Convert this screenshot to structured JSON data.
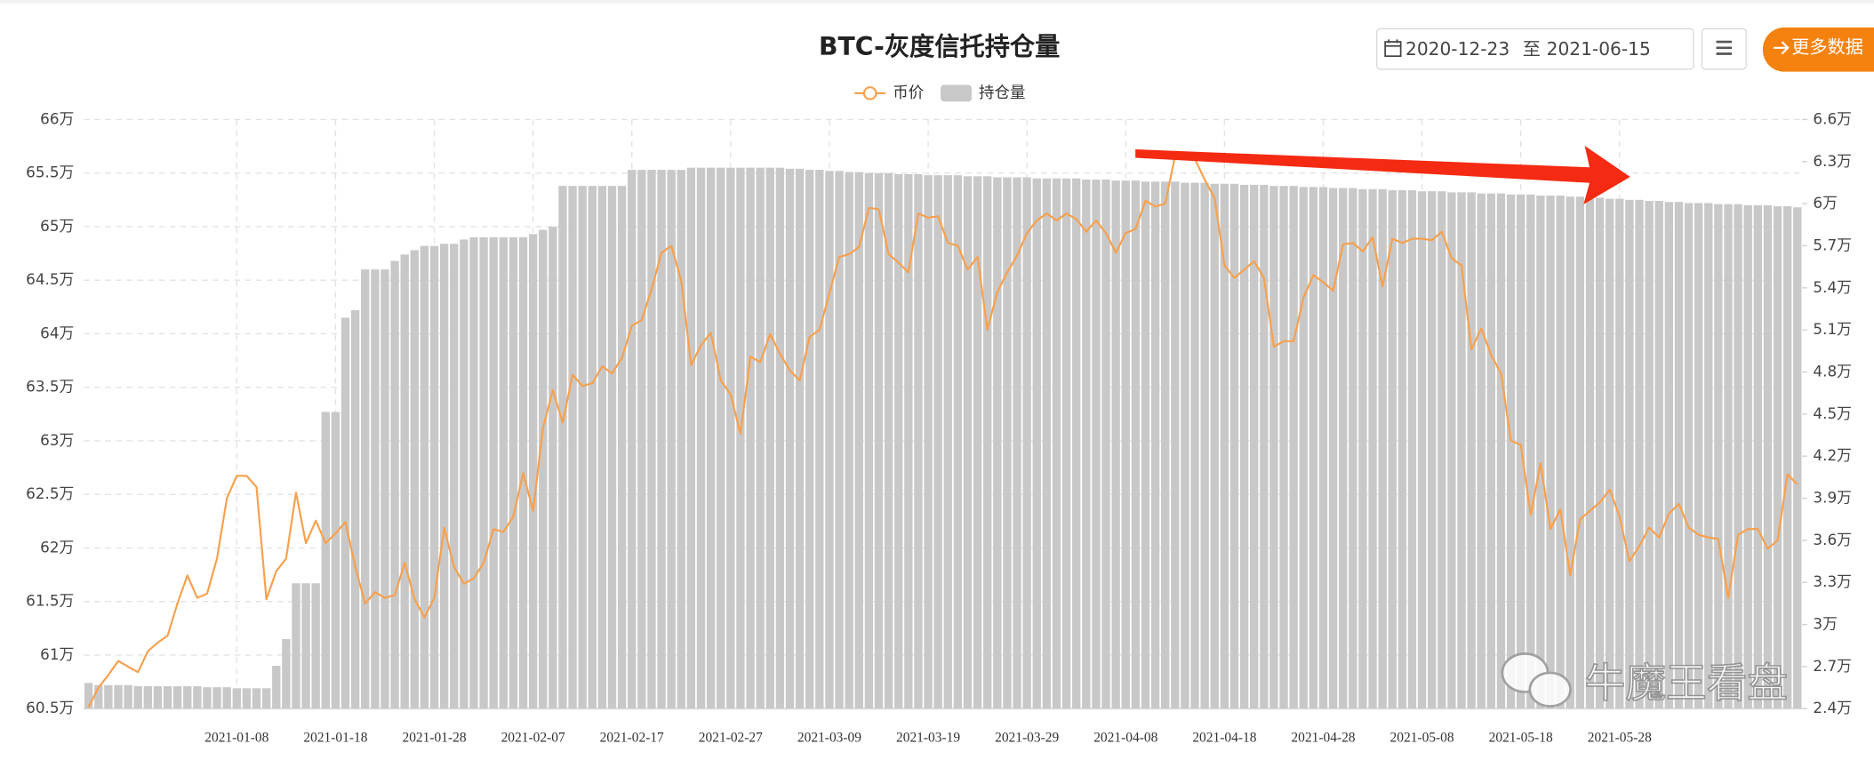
{
  "controls": {
    "date_start": "2020-12-23",
    "date_sep": "至",
    "date_end": "2021-06-15",
    "more_button": "更多数据"
  },
  "watermark": "牛魔王看盘",
  "chart_data": {
    "type": "combo",
    "title": "BTC-灰度信托持仓量",
    "legend": "top",
    "grid": true,
    "categories": [
      null,
      null,
      null,
      null,
      null,
      null,
      null,
      null,
      null,
      null,
      null,
      null,
      null,
      null,
      null,
      "2021-01-08",
      null,
      null,
      null,
      null,
      null,
      null,
      null,
      null,
      null,
      "2021-01-18",
      null,
      null,
      null,
      null,
      null,
      null,
      null,
      null,
      null,
      "2021-01-28",
      null,
      null,
      null,
      null,
      null,
      null,
      null,
      null,
      null,
      "2021-02-07",
      null,
      null,
      null,
      null,
      null,
      null,
      null,
      null,
      null,
      "2021-02-17",
      null,
      null,
      null,
      null,
      null,
      null,
      null,
      null,
      null,
      "2021-02-27",
      null,
      null,
      null,
      null,
      null,
      null,
      null,
      null,
      null,
      "2021-03-09",
      null,
      null,
      null,
      null,
      null,
      null,
      null,
      null,
      null,
      "2021-03-19",
      null,
      null,
      null,
      null,
      null,
      null,
      null,
      null,
      null,
      "2021-03-29",
      null,
      null,
      null,
      null,
      null,
      null,
      null,
      null,
      null,
      "2021-04-08",
      null,
      null,
      null,
      null,
      null,
      null,
      null,
      null,
      null,
      "2021-04-18",
      null,
      null,
      null,
      null,
      null,
      null,
      null,
      null,
      null,
      "2021-04-28",
      null,
      null,
      null,
      null,
      null,
      null,
      null,
      null,
      null,
      "2021-05-08",
      null,
      null,
      null,
      null,
      null,
      null,
      null,
      null,
      null,
      "2021-05-18",
      null,
      null,
      null,
      null,
      null,
      null,
      null,
      null,
      null,
      "2021-05-28",
      null,
      null,
      null,
      null,
      null,
      null,
      null,
      null,
      null,
      null,
      null,
      null,
      null,
      null,
      null,
      null,
      null,
      null
    ],
    "ylim": [
      60.5,
      66
    ],
    "yticks": [
      {
        "value": 60.5,
        "label": "60.5万"
      },
      {
        "value": 61,
        "label": "61万"
      },
      {
        "value": 61.5,
        "label": "61.5万"
      },
      {
        "value": 62,
        "label": "62万"
      },
      {
        "value": 62.5,
        "label": "62.5万"
      },
      {
        "value": 63,
        "label": "63万"
      },
      {
        "value": 63.5,
        "label": "63.5万"
      },
      {
        "value": 64,
        "label": "64万"
      },
      {
        "value": 64.5,
        "label": "64.5万"
      },
      {
        "value": 65,
        "label": "65万"
      },
      {
        "value": 65.5,
        "label": "65.5万"
      },
      {
        "value": 66,
        "label": "66万"
      }
    ],
    "y2lim": [
      2.4,
      6.6
    ],
    "y2ticks": [
      {
        "value": 2.4,
        "label": "2.4万"
      },
      {
        "value": 2.7,
        "label": "2.7万"
      },
      {
        "value": 3,
        "label": "3万"
      },
      {
        "value": 3.3,
        "label": "3.3万"
      },
      {
        "value": 3.6,
        "label": "3.6万"
      },
      {
        "value": 3.9,
        "label": "3.9万"
      },
      {
        "value": 4.2,
        "label": "4.2万"
      },
      {
        "value": 4.5,
        "label": "4.5万"
      },
      {
        "value": 4.8,
        "label": "4.8万"
      },
      {
        "value": 5.1,
        "label": "5.1万"
      },
      {
        "value": 5.4,
        "label": "5.4万"
      },
      {
        "value": 5.7,
        "label": "5.7万"
      },
      {
        "value": 6,
        "label": "6万"
      },
      {
        "value": 6.3,
        "label": "6.3万"
      },
      {
        "value": 6.6,
        "label": "6.6万"
      }
    ],
    "series": [
      {
        "name": "币价",
        "type": "line",
        "axis": "y2",
        "color": "#f7a04d",
        "values": [
          2.41,
          2.55,
          2.64,
          2.74,
          2.7,
          2.66,
          2.81,
          2.87,
          2.92,
          3.15,
          3.35,
          3.19,
          3.22,
          3.47,
          3.9,
          4.06,
          4.06,
          3.98,
          3.18,
          3.38,
          3.47,
          3.94,
          3.58,
          3.74,
          3.58,
          3.65,
          3.73,
          3.41,
          3.15,
          3.23,
          3.19,
          3.21,
          3.44,
          3.18,
          3.05,
          3.19,
          3.69,
          3.41,
          3.29,
          3.33,
          3.44,
          3.68,
          3.66,
          3.77,
          4.08,
          3.81,
          4.4,
          4.67,
          4.44,
          4.78,
          4.7,
          4.72,
          4.84,
          4.79,
          4.9,
          5.13,
          5.17,
          5.39,
          5.65,
          5.7,
          5.45,
          4.85,
          4.99,
          5.08,
          4.74,
          4.64,
          4.36,
          4.91,
          4.87,
          5.07,
          4.93,
          4.81,
          4.74,
          5.05,
          5.1,
          5.36,
          5.62,
          5.64,
          5.69,
          5.97,
          5.96,
          5.64,
          5.58,
          5.51,
          5.93,
          5.9,
          5.91,
          5.72,
          5.7,
          5.53,
          5.62,
          5.1,
          5.37,
          5.51,
          5.63,
          5.79,
          5.88,
          5.93,
          5.88,
          5.93,
          5.89,
          5.8,
          5.88,
          5.79,
          5.65,
          5.79,
          5.82,
          6.02,
          5.98,
          6.0,
          6.34,
          6.36,
          6.32,
          6.17,
          6.04,
          5.56,
          5.47,
          5.53,
          5.59,
          5.47,
          4.98,
          5.02,
          5.02,
          5.33,
          5.49,
          5.44,
          5.38,
          5.71,
          5.72,
          5.66,
          5.76,
          5.41,
          5.75,
          5.72,
          5.75,
          5.75,
          5.74,
          5.8,
          5.61,
          5.56,
          4.96,
          5.11,
          4.92,
          4.79,
          4.31,
          4.28,
          3.78,
          4.15,
          3.68,
          3.82,
          3.35,
          3.75,
          3.81,
          3.87,
          3.96,
          3.77,
          3.45,
          3.56,
          3.69,
          3.62,
          3.79,
          3.86,
          3.69,
          3.64,
          3.62,
          3.61,
          3.19,
          3.64,
          3.68,
          3.68,
          3.54,
          3.6,
          4.07,
          4.0
        ]
      },
      {
        "name": "持仓量",
        "type": "bar",
        "color": "#c8c8c8",
        "values": [
          60.74,
          60.72,
          60.72,
          60.72,
          60.72,
          60.71,
          60.71,
          60.71,
          60.71,
          60.71,
          60.71,
          60.71,
          60.7,
          60.7,
          60.7,
          60.69,
          60.69,
          60.69,
          60.69,
          60.9,
          61.15,
          61.67,
          61.67,
          61.67,
          63.27,
          63.27,
          64.15,
          64.22,
          64.6,
          64.6,
          64.6,
          64.68,
          64.74,
          64.78,
          64.82,
          64.82,
          64.84,
          64.84,
          64.88,
          64.9,
          64.9,
          64.9,
          64.9,
          64.9,
          64.9,
          64.93,
          64.97,
          65.0,
          65.38,
          65.38,
          65.38,
          65.38,
          65.38,
          65.38,
          65.38,
          65.53,
          65.53,
          65.53,
          65.53,
          65.53,
          65.53,
          65.55,
          65.55,
          65.55,
          65.55,
          65.55,
          65.55,
          65.55,
          65.55,
          65.55,
          65.55,
          65.54,
          65.54,
          65.53,
          65.53,
          65.52,
          65.52,
          65.51,
          65.51,
          65.5,
          65.5,
          65.5,
          65.49,
          65.49,
          65.49,
          65.48,
          65.48,
          65.48,
          65.48,
          65.47,
          65.47,
          65.47,
          65.46,
          65.46,
          65.46,
          65.46,
          65.45,
          65.45,
          65.45,
          65.45,
          65.45,
          65.44,
          65.44,
          65.44,
          65.43,
          65.43,
          65.43,
          65.42,
          65.42,
          65.42,
          65.42,
          65.41,
          65.41,
          65.41,
          65.4,
          65.4,
          65.4,
          65.39,
          65.39,
          65.39,
          65.38,
          65.38,
          65.38,
          65.37,
          65.37,
          65.37,
          65.36,
          65.36,
          65.36,
          65.35,
          65.35,
          65.35,
          65.34,
          65.34,
          65.34,
          65.33,
          65.33,
          65.33,
          65.32,
          65.32,
          65.32,
          65.31,
          65.31,
          65.31,
          65.3,
          65.3,
          65.3,
          65.29,
          65.29,
          65.29,
          65.28,
          65.28,
          65.27,
          65.27,
          65.26,
          65.26,
          65.25,
          65.25,
          65.24,
          65.24,
          65.23,
          65.23,
          65.22,
          65.22,
          65.22,
          65.21,
          65.21,
          65.21,
          65.2,
          65.2,
          65.2,
          65.19,
          65.19,
          65.18
        ]
      }
    ]
  }
}
